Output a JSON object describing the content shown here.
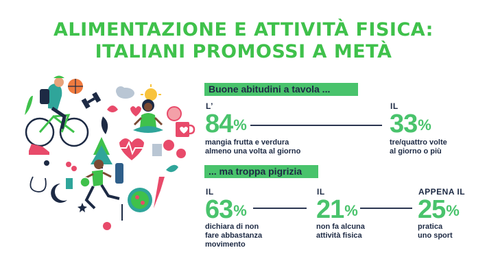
{
  "title": {
    "line1": "ALIMENTAZIONE E ATTIVITÀ FISICA:",
    "line2": "ITALIANI PROMOSSI A METÀ"
  },
  "section1": {
    "heading": "Buone abitudini a tavola ...",
    "stats": [
      {
        "prefix": "L’",
        "value": "84",
        "unit": "%",
        "desc": "mangia frutta e verdura\nalmeno una volta al giorno"
      },
      {
        "prefix": "IL",
        "value": "33",
        "unit": "%",
        "desc": "tre/quattro volte\nal giorno o più"
      }
    ]
  },
  "section2": {
    "heading": "... ma troppa pigrizia",
    "stats": [
      {
        "prefix": "IL",
        "value": "63",
        "unit": "%",
        "desc": "dichiara di non\nfare abbastanza\nmovimento"
      },
      {
        "prefix": "IL",
        "value": "21",
        "unit": "%",
        "desc": "non fa alcuna\nattività fisica"
      },
      {
        "prefix": "APPENA IL",
        "value": "25",
        "unit": "%",
        "desc": "pratica\nuno sport"
      }
    ]
  },
  "colors": {
    "green": "#3fc14b",
    "band": "#49c36c",
    "navy": "#1d2a44",
    "pink": "#e84a6a",
    "teal": "#2fa59a"
  },
  "illustration": {
    "icons": [
      "cyclist-icon",
      "basketball-icon",
      "dumbbell-icon",
      "cloud-icon",
      "sun-icon",
      "meditation-woman-icon",
      "tree-icon",
      "heart-rate-icon",
      "mug-icon",
      "apple-icon",
      "runner-woman-icon",
      "water-bottle-icon",
      "salad-bowl-icon",
      "jump-rope-icon",
      "moon-icon",
      "sneaker-icon",
      "vegetables-icon"
    ]
  }
}
